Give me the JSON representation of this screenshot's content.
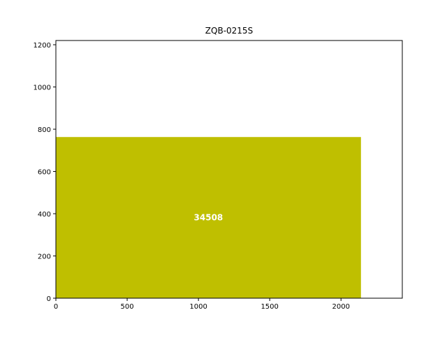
{
  "chart_data": {
    "type": "bar",
    "title": "ZQB-0215S",
    "xlabel": "",
    "ylabel": "",
    "xlim": [
      0,
      2430
    ],
    "ylim": [
      0,
      1220
    ],
    "xticks": [
      0,
      500,
      1000,
      1500,
      2000
    ],
    "yticks": [
      0,
      200,
      400,
      600,
      800,
      1000,
      1200
    ],
    "grid": false,
    "legend": "none",
    "bars": [
      {
        "x_start": 0,
        "x_end": 2140,
        "height": 763,
        "color": "#bfbf00",
        "label": "34508",
        "label_color": "#ffffff"
      }
    ]
  }
}
